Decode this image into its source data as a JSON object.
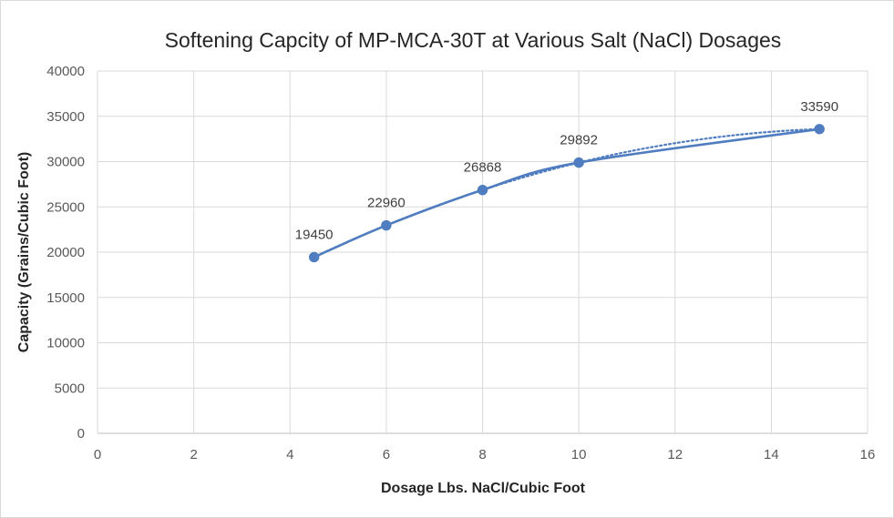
{
  "chart_data": {
    "type": "scatter",
    "title": "Softening Capcity of MP-MCA-30T at Various Salt (NaCl) Dosages",
    "xlabel": "Dosage Lbs. NaCl/Cubic Foot",
    "ylabel": "Capacity (Grains/Cubic Foot)",
    "xlim": [
      0,
      16
    ],
    "ylim": [
      0,
      40000
    ],
    "xticks": [
      0,
      2,
      4,
      6,
      8,
      10,
      12,
      14,
      16
    ],
    "yticks": [
      0,
      5000,
      10000,
      15000,
      20000,
      25000,
      30000,
      35000,
      40000
    ],
    "grid": true,
    "legend": "none",
    "series": [
      {
        "x": [
          4.5,
          6,
          8,
          10,
          15
        ],
        "y": [
          19450,
          22960,
          26868,
          29892,
          33590
        ],
        "labels": [
          "19450",
          "22960",
          "26868",
          "29892",
          "33590"
        ],
        "style": "smoothed line with markers",
        "color": "#4f7dbf"
      }
    ],
    "trendline": {
      "style": "dotted",
      "color": "#4f7dbf"
    }
  }
}
